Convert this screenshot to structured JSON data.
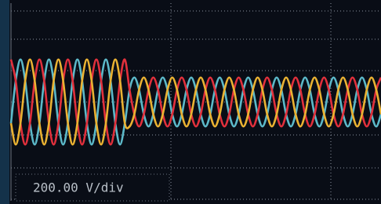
{
  "chart_data": {
    "type": "line",
    "annotation": "200.00 V/div",
    "x": [
      0,
      1,
      2,
      3,
      4,
      5,
      6,
      7,
      8,
      9,
      10,
      11,
      12,
      13,
      14,
      15,
      16,
      17,
      18,
      19,
      20,
      21,
      22,
      23,
      24,
      25,
      26,
      27,
      28,
      29,
      30,
      31,
      32,
      33,
      34,
      35,
      36,
      37,
      38,
      39,
      40,
      41,
      42,
      43,
      44,
      45,
      46,
      47,
      48,
      49,
      50,
      51,
      52,
      53,
      54,
      55,
      56,
      57,
      58,
      59,
      60,
      61,
      62,
      63,
      64,
      65,
      66,
      67,
      68,
      69,
      70,
      71,
      72,
      73,
      74,
      75,
      76,
      77,
      78
    ],
    "xlim": [
      0,
      78
    ],
    "ylim": [
      -600,
      600
    ],
    "series": [
      {
        "color": "#5cb9c9",
        "values": [
          -130,
          130,
          260,
          130,
          -130,
          -260,
          -130,
          130,
          260,
          130,
          -130,
          -260,
          -130,
          130,
          260,
          130,
          -130,
          -260,
          -130,
          130,
          260,
          130,
          -130,
          -260,
          -130,
          75,
          150,
          75,
          -75,
          -150,
          -75,
          75,
          150,
          75,
          -75,
          -150,
          -75,
          75,
          150,
          75,
          -75,
          -150,
          -75,
          75,
          150,
          75,
          -75,
          -150,
          -75,
          75,
          150,
          75,
          -75,
          -150,
          -75,
          75,
          150,
          75,
          -75,
          -150,
          -75,
          75,
          150,
          75,
          -75,
          -150,
          -75,
          75,
          150,
          75,
          -75,
          -150,
          -75,
          75,
          150,
          75,
          -75,
          -150,
          -75
        ]
      },
      {
        "color": "#e2303c",
        "values": [
          260,
          130,
          -130,
          -260,
          -130,
          130,
          260,
          130,
          -130,
          -260,
          -130,
          130,
          260,
          130,
          -130,
          -260,
          -130,
          130,
          260,
          130,
          -130,
          -260,
          -130,
          130,
          260,
          75,
          -75,
          -150,
          -75,
          75,
          150,
          75,
          -75,
          -150,
          -75,
          75,
          150,
          75,
          -75,
          -150,
          -75,
          75,
          150,
          75,
          -75,
          -150,
          -75,
          75,
          150,
          75,
          -75,
          -150,
          -75,
          75,
          150,
          75,
          -75,
          -150,
          -75,
          75,
          150,
          75,
          -75,
          -150,
          -75,
          75,
          150,
          75,
          -75,
          -150,
          -75,
          75,
          150,
          75,
          -75,
          -150,
          -75,
          75,
          150
        ]
      },
      {
        "color": "#eab232",
        "values": [
          -130,
          -260,
          -130,
          130,
          260,
          130,
          -130,
          -260,
          -130,
          130,
          260,
          130,
          -130,
          -260,
          -130,
          130,
          260,
          130,
          -130,
          -260,
          -130,
          130,
          260,
          130,
          -130,
          -150,
          -75,
          75,
          150,
          75,
          -75,
          -150,
          -75,
          75,
          150,
          75,
          -75,
          -150,
          -75,
          75,
          150,
          75,
          -75,
          -150,
          -75,
          75,
          150,
          75,
          -75,
          -150,
          -75,
          75,
          150,
          75,
          -75,
          -150,
          -75,
          75,
          150,
          75,
          -75,
          -150,
          -75,
          75,
          150,
          75,
          -75,
          -150,
          -75,
          75,
          150,
          75,
          -75,
          -150,
          -75,
          75,
          150,
          75,
          -75
        ]
      }
    ]
  }
}
